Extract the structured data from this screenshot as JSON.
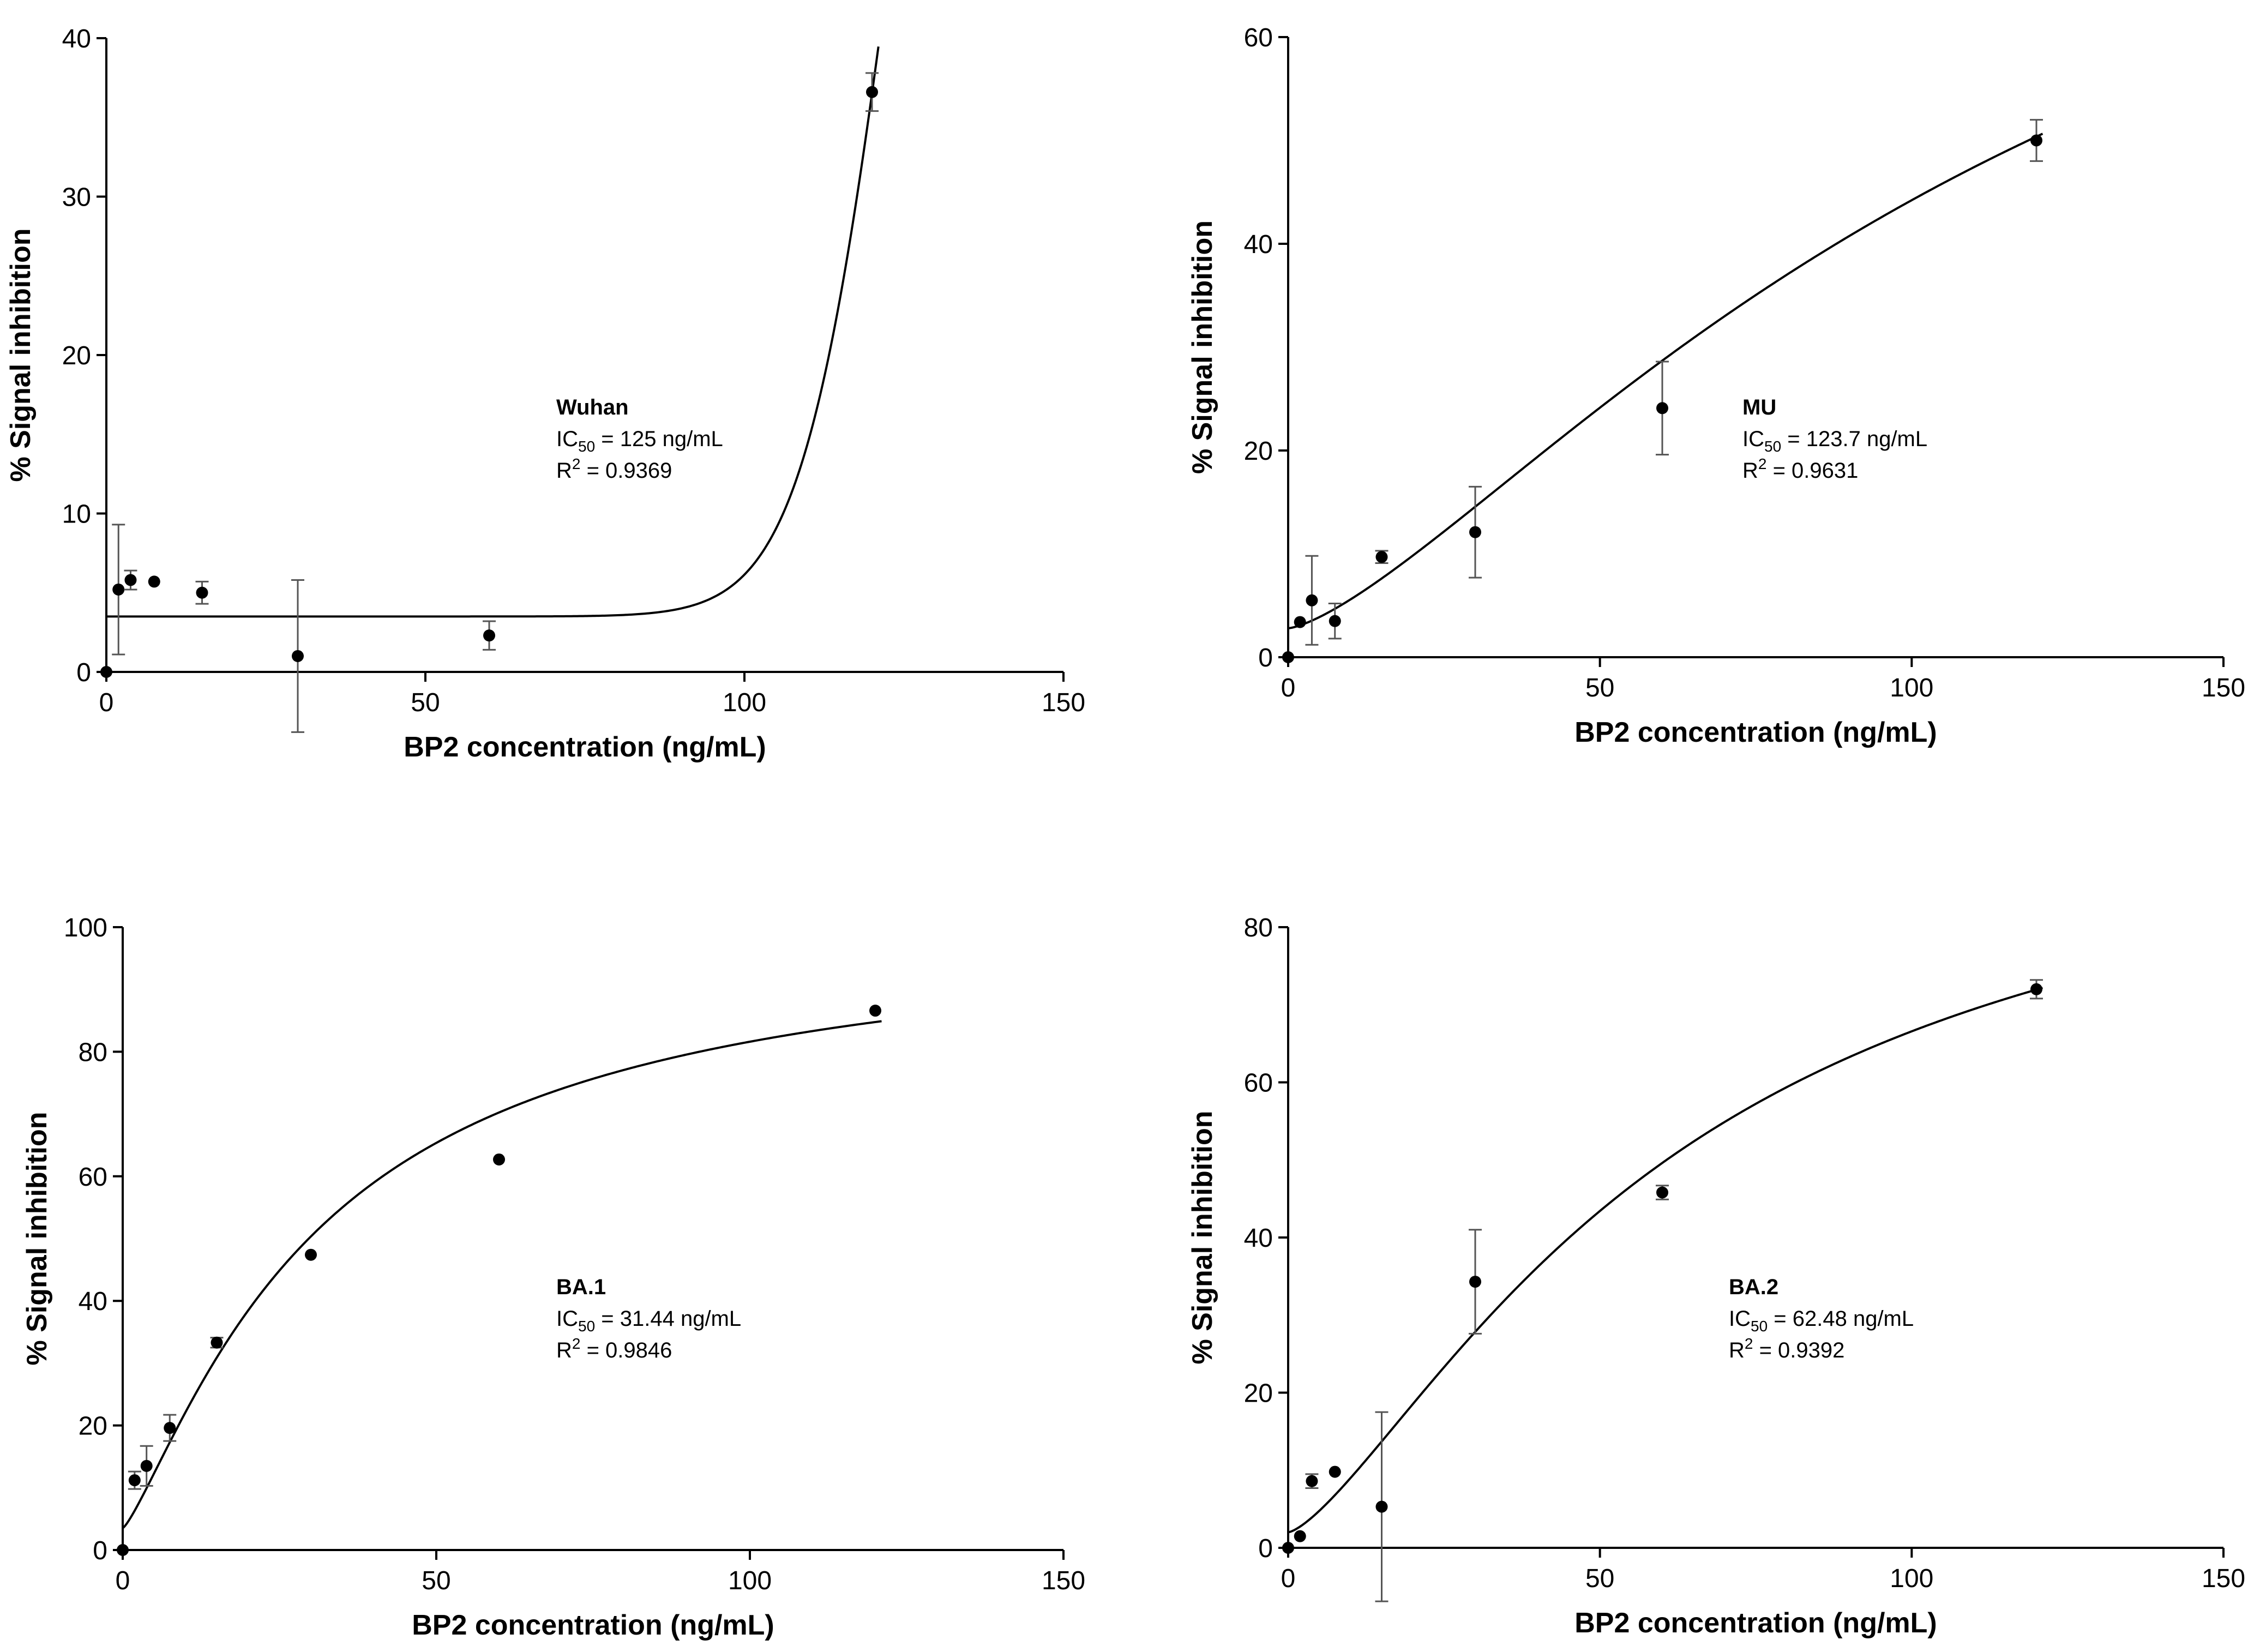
{
  "chart_data": [
    {
      "type": "scatter",
      "panel": "Wuhan",
      "xlabel": "BP2 concentration (ng/mL)",
      "ylabel": "% Signal inhibition",
      "xlim": [
        0,
        150
      ],
      "ylim": [
        0,
        40
      ],
      "xticks": [
        0,
        50,
        100,
        150
      ],
      "yticks": [
        0,
        10,
        20,
        30,
        40
      ],
      "points": [
        {
          "x": 0,
          "y": 0,
          "err": 0
        },
        {
          "x": 1.9,
          "y": 5.2,
          "err": 4.1
        },
        {
          "x": 3.8,
          "y": 5.8,
          "err": 0.6
        },
        {
          "x": 7.5,
          "y": 5.7,
          "err": 0.0
        },
        {
          "x": 15,
          "y": 5.0,
          "err": 0.7
        },
        {
          "x": 30,
          "y": 1.0,
          "err": 4.8
        },
        {
          "x": 60,
          "y": 2.3,
          "err": 0.9
        },
        {
          "x": 120,
          "y": 36.6,
          "err": 1.2
        }
      ],
      "fit": {
        "model": "hill",
        "bottom": 3.5,
        "top": 100,
        "ec50": 125,
        "hill": 16,
        "xmax": 121
      },
      "annotation": {
        "title": "Wuhan",
        "ic50_prefix": "IC",
        "ic50_sub": "50",
        "ic50_value": " = 125 ng/mL",
        "r2_prefix": "R",
        "r2_sup": "2",
        "r2_value": " = 0.9369"
      }
    },
    {
      "type": "scatter",
      "panel": "MU",
      "xlabel": "BP2 concentration (ng/mL)",
      "ylabel": "% Signal inhibition",
      "xlim": [
        0,
        150
      ],
      "ylim": [
        0,
        60
      ],
      "xticks": [
        0,
        50,
        100,
        150
      ],
      "yticks": [
        0,
        20,
        40,
        60
      ],
      "points": [
        {
          "x": 0,
          "y": 0,
          "err": 0
        },
        {
          "x": 1.9,
          "y": 3.4,
          "err": 0.0
        },
        {
          "x": 3.8,
          "y": 5.5,
          "err": 4.3
        },
        {
          "x": 7.5,
          "y": 3.5,
          "err": 1.7
        },
        {
          "x": 15,
          "y": 9.7,
          "err": 0.6
        },
        {
          "x": 30,
          "y": 12.1,
          "err": 4.4
        },
        {
          "x": 60,
          "y": 24.1,
          "err": 4.5
        },
        {
          "x": 120,
          "y": 50.0,
          "err": 2.0
        }
      ],
      "fit": {
        "model": "hill",
        "bottom": 2.8,
        "top": 100,
        "ec50": 123.7,
        "hill": 1.4,
        "xmax": 121
      },
      "annotation": {
        "title": "MU",
        "ic50_prefix": "IC",
        "ic50_sub": "50",
        "ic50_value": " = 123.7 ng/mL",
        "r2_prefix": "R",
        "r2_sup": "2",
        "r2_value": " = 0.9631"
      }
    },
    {
      "type": "scatter",
      "panel": "BA.1",
      "xlabel": "BP2 concentration (ng/mL)",
      "ylabel": "% Signal inhibition",
      "xlim": [
        0,
        150
      ],
      "ylim": [
        0,
        100
      ],
      "xticks": [
        0,
        50,
        100,
        150
      ],
      "yticks": [
        0,
        20,
        40,
        60,
        80,
        100
      ],
      "points": [
        {
          "x": 0,
          "y": 0,
          "err": 0
        },
        {
          "x": 1.9,
          "y": 11.2,
          "err": 1.4
        },
        {
          "x": 3.8,
          "y": 13.5,
          "err": 3.2
        },
        {
          "x": 7.5,
          "y": 19.6,
          "err": 2.1
        },
        {
          "x": 15,
          "y": 33.3,
          "err": 0.8
        },
        {
          "x": 30,
          "y": 47.4,
          "err": 0.0
        },
        {
          "x": 60,
          "y": 62.7,
          "err": 0.0
        },
        {
          "x": 120,
          "y": 86.6,
          "err": 0.0
        }
      ],
      "fit": {
        "model": "hill",
        "bottom": 3.5,
        "top": 100,
        "ec50": 31.44,
        "hill": 1.25,
        "xmax": 121
      },
      "annotation": {
        "title": "BA.1",
        "ic50_prefix": "IC",
        "ic50_sub": "50",
        "ic50_value": " = 31.44 ng/mL",
        "r2_prefix": "R",
        "r2_sup": "2",
        "r2_value": " = 0.9846"
      }
    },
    {
      "type": "scatter",
      "panel": "BA.2",
      "xlabel": "BP2 concentration (ng/mL)",
      "ylabel": "% Signal inhibition",
      "xlim": [
        0,
        150
      ],
      "ylim": [
        0,
        80
      ],
      "xticks": [
        0,
        50,
        100,
        150
      ],
      "yticks": [
        0,
        20,
        40,
        60,
        80
      ],
      "points": [
        {
          "x": 0,
          "y": 0,
          "err": 0
        },
        {
          "x": 1.9,
          "y": 1.5,
          "err": 0.0
        },
        {
          "x": 3.8,
          "y": 8.6,
          "err": 0.9
        },
        {
          "x": 7.5,
          "y": 9.8,
          "err": 0.0
        },
        {
          "x": 15,
          "y": 5.3,
          "err": 12.2
        },
        {
          "x": 30,
          "y": 34.3,
          "err": 6.7
        },
        {
          "x": 60,
          "y": 45.8,
          "err": 0.9
        },
        {
          "x": 120,
          "y": 72.0,
          "err": 1.2
        }
      ],
      "fit": {
        "model": "hill",
        "bottom": 2.0,
        "top": 100,
        "ec50": 62.48,
        "hill": 1.4,
        "xmax": 121
      },
      "annotation": {
        "title": "BA.2",
        "ic50_prefix": "IC",
        "ic50_sub": "50",
        "ic50_value": " = 62.48 ng/mL",
        "r2_prefix": "R",
        "r2_sup": "2",
        "r2_value": " = 0.9392"
      }
    }
  ]
}
